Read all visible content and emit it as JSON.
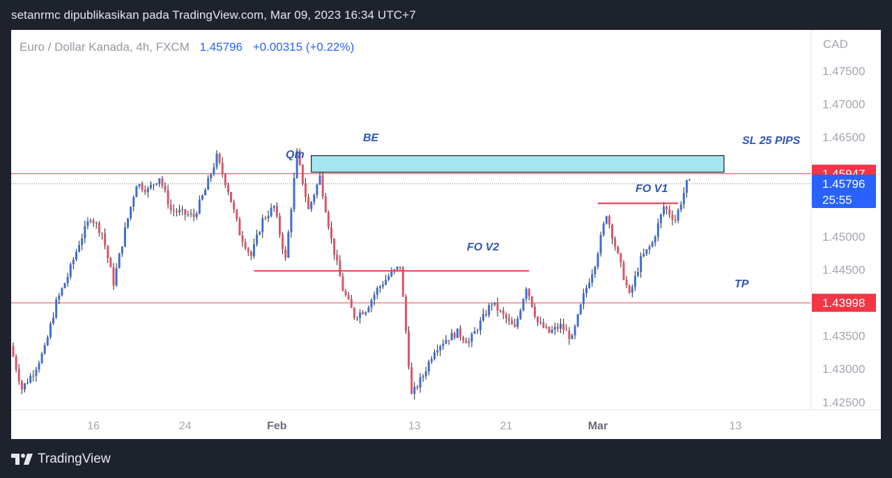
{
  "header": {
    "publish_line": "setanrmc dipublikasikan pada TradingView.com, Mar 09, 2023 16:34 UTC+7"
  },
  "footer": {
    "brand": "TradingView",
    "logo_icon": "tradingview-logo-icon"
  },
  "legend": {
    "symbol": "Euro / Dollar Kanada, 4h, FXCM",
    "last_price": "1.45796",
    "change": "+0.00315 (+0.22%)"
  },
  "colors": {
    "up": "#3b6fd4",
    "down": "#e05465",
    "wick": "#222222",
    "line_red": "#d84a58",
    "price_label_red": "#f23645",
    "price_label_blue": "#2962ff",
    "box_fill": "#a6e6f2",
    "annotation": "#2f55b5",
    "axis_text": "#a3a6af"
  },
  "chart_data": {
    "type": "candlestick",
    "title": "Euro / Dollar Kanada, 4h, FXCM",
    "currency": "CAD",
    "ylim": [
      1.4215,
      1.4785
    ],
    "y_ticks": [
      "1.47500",
      "1.47000",
      "1.46500",
      "1.46000",
      "1.45500",
      "1.45000",
      "1.44500",
      "1.44000",
      "1.43500",
      "1.43000",
      "1.42500"
    ],
    "x_ticks": [
      {
        "label": "16",
        "date": "2023-01-16",
        "bold": false
      },
      {
        "label": "24",
        "date": "2023-01-24",
        "bold": false
      },
      {
        "label": "Feb",
        "date": "2023-02-01",
        "bold": true
      },
      {
        "label": "13",
        "date": "2023-02-13",
        "bold": false
      },
      {
        "label": "21",
        "date": "2023-02-21",
        "bold": false
      },
      {
        "label": "Mar",
        "date": "2023-03-01",
        "bold": true
      },
      {
        "label": "13",
        "date": "2023-03-13",
        "bold": false
      }
    ],
    "x_range": [
      "2023-01-09",
      "2023-03-19"
    ],
    "grid": false,
    "path_points": [
      {
        "date": "2023-01-09",
        "price": 1.4335
      },
      {
        "date": "2023-01-10",
        "price": 1.427
      },
      {
        "date": "2023-01-11",
        "price": 1.4295
      },
      {
        "date": "2023-01-12",
        "price": 1.433
      },
      {
        "date": "2023-01-13",
        "price": 1.44
      },
      {
        "date": "2023-01-14",
        "price": 1.444
      },
      {
        "date": "2023-01-15",
        "price": 1.449
      },
      {
        "date": "2023-01-16",
        "price": 1.453
      },
      {
        "date": "2023-01-17",
        "price": 1.4505
      },
      {
        "date": "2023-01-18",
        "price": 1.443
      },
      {
        "date": "2023-01-19",
        "price": 1.451
      },
      {
        "date": "2023-01-20",
        "price": 1.458
      },
      {
        "date": "2023-01-21",
        "price": 1.457
      },
      {
        "date": "2023-01-22",
        "price": 1.459
      },
      {
        "date": "2023-01-23",
        "price": 1.454
      },
      {
        "date": "2023-01-24",
        "price": 1.4535
      },
      {
        "date": "2023-01-25",
        "price": 1.453
      },
      {
        "date": "2023-01-26",
        "price": 1.457
      },
      {
        "date": "2023-01-27",
        "price": 1.462
      },
      {
        "date": "2023-01-28",
        "price": 1.457
      },
      {
        "date": "2023-01-29",
        "price": 1.4505
      },
      {
        "date": "2023-01-30",
        "price": 1.447
      },
      {
        "date": "2023-01-31",
        "price": 1.4525
      },
      {
        "date": "2023-02-01",
        "price": 1.4545
      },
      {
        "date": "2023-02-02",
        "price": 1.4465
      },
      {
        "date": "2023-02-03",
        "price": 1.4625
      },
      {
        "date": "2023-02-04",
        "price": 1.454
      },
      {
        "date": "2023-02-05",
        "price": 1.459
      },
      {
        "date": "2023-02-06",
        "price": 1.4495
      },
      {
        "date": "2023-02-07",
        "price": 1.442
      },
      {
        "date": "2023-02-08",
        "price": 1.438
      },
      {
        "date": "2023-02-09",
        "price": 1.439
      },
      {
        "date": "2023-02-10",
        "price": 1.442
      },
      {
        "date": "2023-02-11",
        "price": 1.444
      },
      {
        "date": "2023-02-12",
        "price": 1.4455
      },
      {
        "date": "2023-02-13",
        "price": 1.426
      },
      {
        "date": "2023-02-14",
        "price": 1.429
      },
      {
        "date": "2023-02-15",
        "price": 1.433
      },
      {
        "date": "2023-02-16",
        "price": 1.4345
      },
      {
        "date": "2023-02-17",
        "price": 1.4355
      },
      {
        "date": "2023-02-18",
        "price": 1.434
      },
      {
        "date": "2023-02-19",
        "price": 1.437
      },
      {
        "date": "2023-02-20",
        "price": 1.44
      },
      {
        "date": "2023-02-21",
        "price": 1.438
      },
      {
        "date": "2023-02-22",
        "price": 1.436
      },
      {
        "date": "2023-02-23",
        "price": 1.4425
      },
      {
        "date": "2023-02-24",
        "price": 1.437
      },
      {
        "date": "2023-02-25",
        "price": 1.4355
      },
      {
        "date": "2023-02-26",
        "price": 1.4365
      },
      {
        "date": "2023-02-27",
        "price": 1.4345
      },
      {
        "date": "2023-02-28",
        "price": 1.441
      },
      {
        "date": "2023-03-01",
        "price": 1.446
      },
      {
        "date": "2023-03-02",
        "price": 1.4535
      },
      {
        "date": "2023-03-03",
        "price": 1.447
      },
      {
        "date": "2023-03-04",
        "price": 1.441
      },
      {
        "date": "2023-03-05",
        "price": 1.4465
      },
      {
        "date": "2023-03-06",
        "price": 1.449
      },
      {
        "date": "2023-03-07",
        "price": 1.4545
      },
      {
        "date": "2023-03-08",
        "price": 1.4525
      },
      {
        "date": "2023-03-09",
        "price": 1.458
      }
    ],
    "price_lines": [
      {
        "price": 1.45947,
        "label": "1.45947"
      },
      {
        "price": 1.43998,
        "label": "1.43998"
      }
    ],
    "current_price": {
      "price": 1.45796,
      "label": "1.45796",
      "countdown": "25:55"
    },
    "annotations": {
      "qm": "Qm",
      "be": "BE",
      "sl": "SL 25 PIPS",
      "fo_v1": "FO V1",
      "fo_v2": "FO V2",
      "tp": "TP"
    },
    "zones": [
      {
        "type": "box",
        "from": "2023-02-04",
        "to": "2023-03-12",
        "top": 1.4622,
        "bottom": 1.4597
      }
    ],
    "levels": [
      {
        "name": "FO V2",
        "from": "2023-01-30",
        "to": "2023-02-23",
        "price": 1.4448
      },
      {
        "name": "FO V1",
        "from": "2023-03-01",
        "to": "2023-03-08",
        "price": 1.455
      }
    ]
  }
}
